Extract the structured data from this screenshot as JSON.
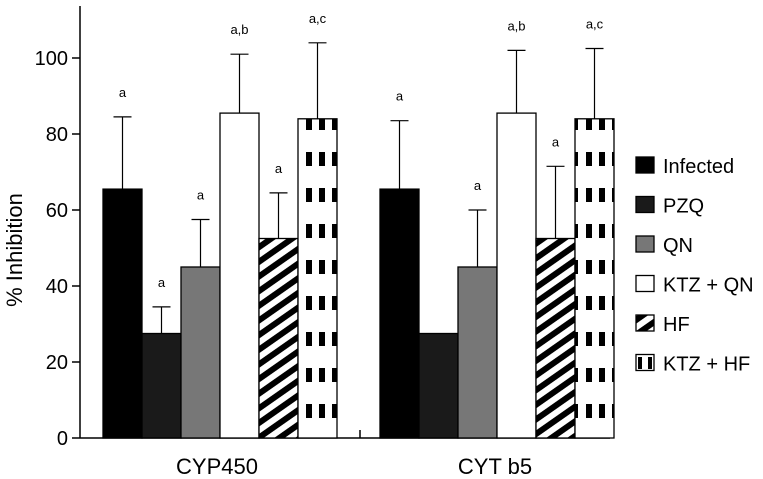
{
  "chart_data": {
    "type": "bar",
    "title": "",
    "xlabel": "",
    "ylabel": "% Inhibition",
    "ylim": [
      0,
      115
    ],
    "yticks": [
      0,
      20,
      40,
      60,
      80,
      100
    ],
    "categories": [
      "CYP450",
      "CYT b5"
    ],
    "series": [
      {
        "name": "Infected",
        "fill": "#000000",
        "pattern": "solid",
        "values": [
          65.5,
          65.5
        ],
        "errors": [
          19,
          18
        ],
        "sig": [
          "a",
          "a"
        ]
      },
      {
        "name": "PZQ",
        "fill": "#1a1a1a",
        "pattern": "solid",
        "values": [
          27.5,
          27.5
        ],
        "errors": [
          7,
          0
        ],
        "sig": [
          "a",
          ""
        ]
      },
      {
        "name": "QN",
        "fill": "#777777",
        "pattern": "solid",
        "values": [
          45,
          45
        ],
        "errors": [
          12.5,
          15
        ],
        "sig": [
          "a",
          "a"
        ]
      },
      {
        "name": "KTZ + QN",
        "fill": "#ffffff",
        "pattern": "solid",
        "values": [
          85.5,
          85.5
        ],
        "errors": [
          15.5,
          16.5
        ],
        "sig": [
          "a,b",
          "a,b"
        ]
      },
      {
        "name": "HF",
        "fill": "#ffffff",
        "pattern": "diagonal",
        "values": [
          52.5,
          52.5
        ],
        "errors": [
          12,
          19
        ],
        "sig": [
          "a",
          "a"
        ]
      },
      {
        "name": "KTZ + HF",
        "fill": "#ffffff",
        "pattern": "blocks",
        "values": [
          84,
          84
        ],
        "errors": [
          20,
          18.5
        ],
        "sig": [
          "a,c",
          "a,c"
        ]
      }
    ]
  }
}
